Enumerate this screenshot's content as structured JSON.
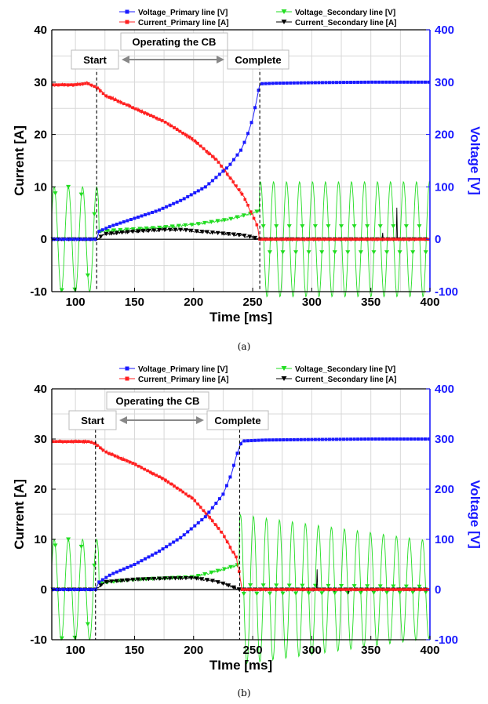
{
  "chart_data": [
    {
      "id": "a",
      "type": "line",
      "caption": "(a)",
      "xlabel": "Time [ms]",
      "ylabel": "Current [A]",
      "y2label": "Voltage [V]",
      "xlim": [
        80,
        400
      ],
      "ylim": [
        -10,
        40
      ],
      "y2lim": [
        -100,
        400
      ],
      "xticks": [
        "100",
        "150",
        "200",
        "250",
        "300",
        "350",
        "400"
      ],
      "yticks": [
        "-10",
        "0",
        "10",
        "20",
        "30",
        "40"
      ],
      "y2ticks": [
        "-100",
        "0",
        "100",
        "200",
        "300",
        "400"
      ],
      "grid": true,
      "legend": [
        {
          "name": "Voltage_Primary line [V]",
          "color": "#1a1aff",
          "marker": "square"
        },
        {
          "name": "Voltage_Secondary line [V]",
          "color": "#22dd22",
          "marker": "triangle-down"
        },
        {
          "name": "Current_Primary line [A]",
          "color": "#ff2020",
          "marker": "square"
        },
        {
          "name": "Current_Secondary line [A]",
          "color": "#000000",
          "marker": "triangle-down"
        }
      ],
      "annotations": {
        "start": "Start",
        "operating": "Operating the CB",
        "complete": "Complete"
      },
      "events": {
        "start_ms": 118,
        "complete_ms": 256
      },
      "series": [
        {
          "name": "Voltage_Primary line [V]",
          "axis": "right",
          "color": "#1a1aff",
          "x": [
            80,
            100,
            118,
            120,
            130,
            150,
            170,
            190,
            210,
            230,
            240,
            245,
            250,
            253,
            256,
            258,
            270,
            300,
            350,
            400
          ],
          "y": [
            0,
            0,
            0,
            15,
            25,
            40,
            55,
            75,
            100,
            140,
            170,
            195,
            230,
            262,
            296,
            297,
            298,
            299,
            300,
            300
          ]
        },
        {
          "name": "Current_Primary line [A]",
          "axis": "left",
          "color": "#ff2020",
          "x": [
            80,
            100,
            110,
            118,
            125,
            150,
            175,
            200,
            220,
            230,
            240,
            245,
            250,
            254,
            256,
            258,
            300,
            350,
            400
          ],
          "y": [
            29.5,
            29.5,
            29.8,
            29,
            27.5,
            25,
            22.5,
            19,
            15,
            12,
            9,
            7,
            4.5,
            2.5,
            0,
            0,
            0,
            0,
            0
          ]
        },
        {
          "name": "Voltage_Secondary line [V]",
          "axis": "right",
          "color": "#22dd22",
          "x": [
            80,
            118,
            120,
            140,
            170,
            200,
            230,
            250,
            256,
            400
          ],
          "y": [
            0,
            0,
            15,
            18,
            22,
            28,
            38,
            50,
            55,
            0
          ],
          "oscillation": [
            {
              "from": 80,
              "to": 120,
              "amplitude": 100,
              "period": 12
            },
            {
              "from": 256,
              "to": 400,
              "amplitude": 110,
              "period": 11
            }
          ]
        },
        {
          "name": "Current_Secondary line [A]",
          "axis": "left",
          "color": "#000000",
          "x": [
            80,
            118,
            125,
            150,
            175,
            190,
            200,
            220,
            240,
            250,
            256,
            300,
            400
          ],
          "y": [
            0,
            0,
            1,
            1.5,
            1.8,
            1.8,
            1.6,
            1.2,
            0.8,
            0.4,
            0,
            0,
            0
          ]
        }
      ]
    },
    {
      "id": "b",
      "type": "line",
      "caption": "(b)",
      "xlabel": "TIme [ms]",
      "ylabel": "Current [A]",
      "y2label": "Voltage [V]",
      "xlim": [
        80,
        400
      ],
      "ylim": [
        -10,
        40
      ],
      "y2lim": [
        -100,
        400
      ],
      "xticks": [
        "100",
        "150",
        "200",
        "250",
        "300",
        "350",
        "400"
      ],
      "yticks": [
        "-10",
        "0",
        "10",
        "20",
        "30",
        "40"
      ],
      "y2ticks": [
        "-100",
        "0",
        "100",
        "200",
        "300",
        "400"
      ],
      "grid": true,
      "legend": [
        {
          "name": "Voltage_Primary line [V]",
          "color": "#1a1aff",
          "marker": "square"
        },
        {
          "name": "Voltage_Secondary line [V]",
          "color": "#22dd22",
          "marker": "triangle-down"
        },
        {
          "name": "Current_Primary line [A]",
          "color": "#ff2020",
          "marker": "square"
        },
        {
          "name": "Current_Secondary line [A]",
          "color": "#000000",
          "marker": "triangle-down"
        }
      ],
      "annotations": {
        "start": "Start",
        "operating": "Operating the CB",
        "complete": "Complete"
      },
      "events": {
        "start_ms": 117,
        "complete_ms": 239
      },
      "series": [
        {
          "name": "Voltage_Primary line [V]",
          "axis": "right",
          "color": "#1a1aff",
          "x": [
            80,
            100,
            117,
            120,
            130,
            150,
            170,
            190,
            210,
            225,
            232,
            236,
            239,
            241,
            260,
            300,
            350,
            400
          ],
          "y": [
            0,
            0,
            0,
            15,
            30,
            50,
            75,
            105,
            145,
            190,
            230,
            265,
            285,
            296,
            298,
            299,
            300,
            300
          ]
        },
        {
          "name": "Current_Primary line [A]",
          "axis": "left",
          "color": "#ff2020",
          "x": [
            80,
            100,
            112,
            117,
            125,
            150,
            175,
            200,
            215,
            225,
            232,
            236,
            239,
            241,
            300,
            350,
            400
          ],
          "y": [
            29.5,
            29.5,
            29.5,
            29,
            27.5,
            25,
            22,
            18,
            14,
            11,
            8,
            6.5,
            3,
            0,
            0,
            0,
            0
          ]
        },
        {
          "name": "Voltage_Secondary line [V]",
          "axis": "right",
          "color": "#22dd22",
          "x": [
            80,
            117,
            120,
            140,
            170,
            200,
            225,
            239,
            400
          ],
          "y": [
            0,
            0,
            12,
            18,
            22,
            25,
            40,
            50,
            0
          ],
          "oscillation": [
            {
              "from": 80,
              "to": 120,
              "amplitude": 100,
              "period": 12
            },
            {
              "from": 239,
              "to": 400,
              "amplitude": 150,
              "period": 11
            }
          ]
        },
        {
          "name": "Current_Secondary line [A]",
          "axis": "left",
          "color": "#000000",
          "x": [
            80,
            117,
            125,
            150,
            175,
            200,
            215,
            225,
            239,
            300,
            400
          ],
          "y": [
            0,
            0,
            1.5,
            2,
            2.2,
            2.3,
            1.8,
            1.2,
            0,
            0,
            0
          ]
        }
      ]
    }
  ]
}
